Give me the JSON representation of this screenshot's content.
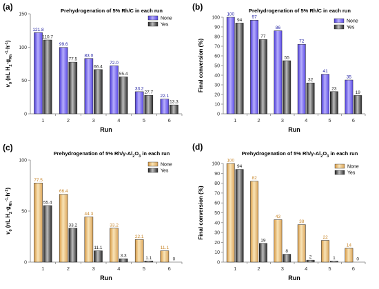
{
  "colors": {
    "none_a": "#6a5cf0",
    "none_c": "#e8b56a",
    "yes": "#3a3a3a",
    "label_blue": "#1a1aa0",
    "label_orange": "#c8862a",
    "axis": "#7a7a7a"
  },
  "chart_data": [
    {
      "panel": "(a)",
      "type": "bar",
      "title_parts": [
        {
          "text": "Prehydrogenation of 5% Rh/C in each run",
          "sub": false
        }
      ],
      "xlabel": "Run",
      "ylabel_parts": [
        {
          "text": "v",
          "style": "italic"
        },
        {
          "text": "0",
          "style": "sub"
        },
        {
          "text": " (nL H",
          "style": "normal"
        },
        {
          "text": "2",
          "style": "sub"
        },
        {
          "text": "·g",
          "style": "normal"
        },
        {
          "text": "Rh",
          "style": "sub"
        },
        {
          "text": "-1",
          "style": "sup"
        },
        {
          "text": "·h",
          "style": "normal"
        },
        {
          "text": "-1",
          "style": "sup"
        },
        {
          "text": ")",
          "style": "normal"
        }
      ],
      "categories": [
        "1",
        "2",
        "3",
        "4",
        "5",
        "6"
      ],
      "ylim": [
        0,
        150
      ],
      "yticks": [
        0,
        50,
        100,
        150
      ],
      "legend_position": "top-right",
      "label_color_key": "label_blue",
      "series": [
        {
          "name": "None",
          "color_key": "none_a",
          "values": [
            121.8,
            99.6,
            83.0,
            72.0,
            33.2,
            22.1
          ],
          "labels": [
            "121.8",
            "99.6",
            "83.0",
            "72.0",
            "33.2",
            "22.1"
          ]
        },
        {
          "name": "Yes",
          "color_key": "yes",
          "values": [
            110.7,
            77.5,
            66.4,
            55.4,
            27.7,
            13.3
          ],
          "labels": [
            "110.7",
            "77.5",
            "66.4",
            "55.4",
            "27.7",
            "13.3"
          ]
        }
      ]
    },
    {
      "panel": "(b)",
      "type": "bar",
      "title_parts": [
        {
          "text": "Prehydrogenation of 5% Rh/C in each run",
          "sub": false
        }
      ],
      "xlabel": "Run",
      "ylabel_parts": [
        {
          "text": "Final conversion (%)",
          "style": "normal"
        }
      ],
      "categories": [
        "1",
        "2",
        "3",
        "4",
        "5",
        "6"
      ],
      "ylim": [
        0,
        100
      ],
      "yticks": [
        0,
        10,
        20,
        30,
        40,
        50,
        60,
        70,
        80,
        90,
        100
      ],
      "legend_position": "top-right",
      "label_color_key": "label_blue",
      "series": [
        {
          "name": "None",
          "color_key": "none_a",
          "values": [
            100,
            97,
            86,
            72,
            41,
            35
          ],
          "labels": [
            "100",
            "97",
            "86",
            "72",
            "41",
            "35"
          ]
        },
        {
          "name": "Yes",
          "color_key": "yes",
          "values": [
            94,
            77,
            55,
            32,
            23,
            19
          ],
          "labels": [
            "94",
            "77",
            "55",
            "32",
            "23",
            "19"
          ]
        }
      ]
    },
    {
      "panel": "(c)",
      "type": "bar",
      "title_parts": [
        {
          "text": "Prehydrogenation of 5% Rh/γ-Al",
          "sub": false
        },
        {
          "text": "2",
          "sub": true
        },
        {
          "text": "O",
          "sub": false
        },
        {
          "text": "3",
          "sub": true
        },
        {
          "text": " in each run",
          "sub": false
        }
      ],
      "xlabel": "Run",
      "ylabel_parts": [
        {
          "text": "v",
          "style": "italic"
        },
        {
          "text": "0",
          "style": "sub"
        },
        {
          "text": " (nL H",
          "style": "normal"
        },
        {
          "text": "2",
          "style": "sub"
        },
        {
          "text": "·g",
          "style": "normal"
        },
        {
          "text": "Rh",
          "style": "sub"
        },
        {
          "text": "-1",
          "style": "sup"
        },
        {
          "text": "·h",
          "style": "normal"
        },
        {
          "text": "-1",
          "style": "sup"
        },
        {
          "text": ")",
          "style": "normal"
        }
      ],
      "categories": [
        "1",
        "2",
        "3",
        "4",
        "5",
        "6"
      ],
      "ylim": [
        0,
        100
      ],
      "yticks": [
        0,
        50,
        100
      ],
      "legend_position": "top-right",
      "label_color_key": "label_orange",
      "series": [
        {
          "name": "None",
          "color_key": "none_c",
          "values": [
            77.5,
            66.4,
            44.3,
            33.2,
            22.1,
            11.1
          ],
          "labels": [
            "77.5",
            "66.4",
            "44.3",
            "33.2",
            "22.1",
            "11.1"
          ]
        },
        {
          "name": "Yes",
          "color_key": "yes",
          "values": [
            55.4,
            33.2,
            11.1,
            3.3,
            1.1,
            0
          ],
          "labels": [
            "55.4",
            "33.2",
            "11.1",
            "3.3",
            "1.1",
            "0"
          ]
        }
      ]
    },
    {
      "panel": "(d)",
      "type": "bar",
      "title_parts": [
        {
          "text": "Prehydrogenation of 5% Rh/γ-Al",
          "sub": false
        },
        {
          "text": "2",
          "sub": true
        },
        {
          "text": "O",
          "sub": false
        },
        {
          "text": "3",
          "sub": true
        },
        {
          "text": " in each run",
          "sub": false
        }
      ],
      "xlabel": "Run",
      "ylabel_parts": [
        {
          "text": "Final conversion (%)",
          "style": "normal"
        }
      ],
      "categories": [
        "1",
        "2",
        "3",
        "4",
        "5",
        "6"
      ],
      "ylim": [
        0,
        100
      ],
      "yticks": [
        0,
        10,
        20,
        30,
        40,
        50,
        60,
        70,
        80,
        90,
        100
      ],
      "legend_position": "top-right",
      "label_color_key": "label_orange",
      "series": [
        {
          "name": "None",
          "color_key": "none_c",
          "values": [
            100,
            82,
            43,
            38,
            22,
            14
          ],
          "labels": [
            "100",
            "82",
            "43",
            "38",
            "22",
            "14"
          ]
        },
        {
          "name": "Yes",
          "color_key": "yes",
          "values": [
            94,
            19,
            8,
            2,
            1,
            0
          ],
          "labels": [
            "94",
            "19",
            "8",
            "2",
            "1",
            "0"
          ]
        }
      ]
    }
  ]
}
